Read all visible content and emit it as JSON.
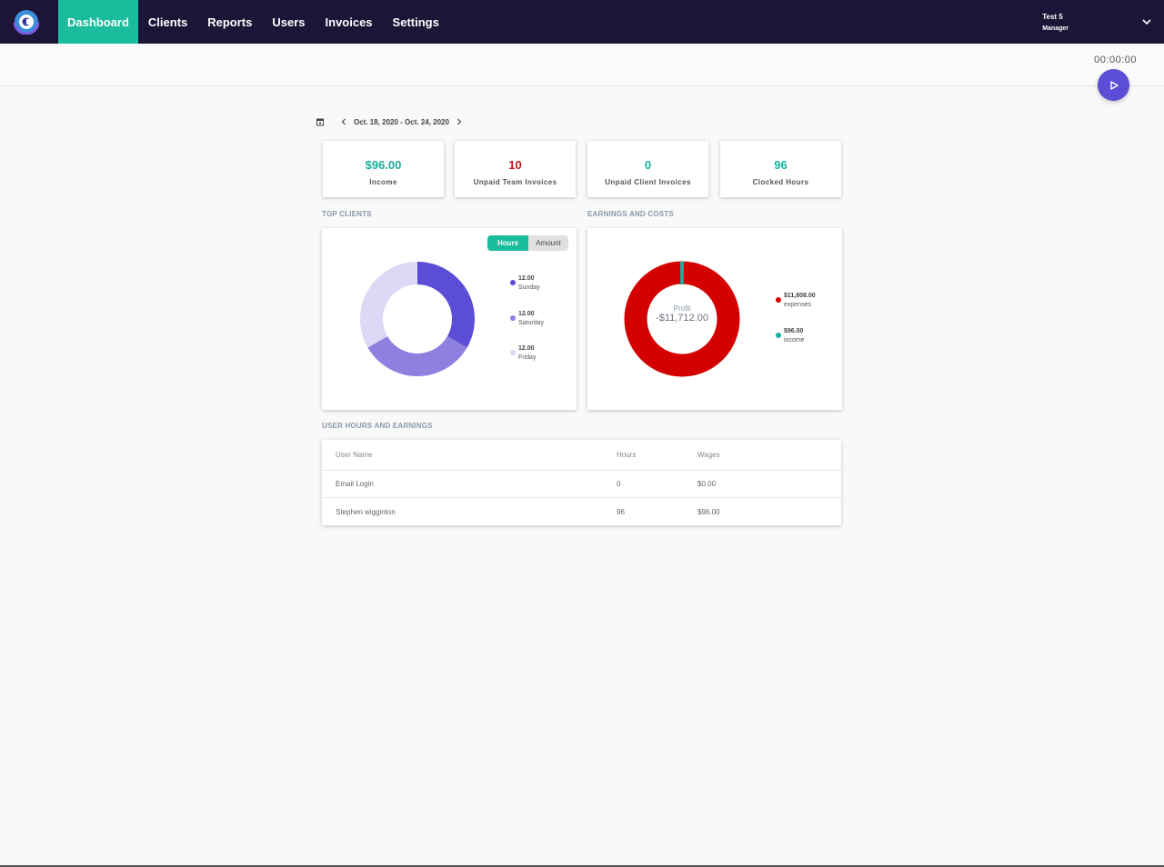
{
  "nav": {
    "items": [
      {
        "label": "Dashboard",
        "active": true
      },
      {
        "label": "Clients"
      },
      {
        "label": "Reports"
      },
      {
        "label": "Users"
      },
      {
        "label": "Invoices"
      },
      {
        "label": "Settings"
      }
    ],
    "user": {
      "name": "Test 5",
      "role": "Manager"
    }
  },
  "timer": {
    "value": "00:00:00"
  },
  "date_range": {
    "label": "Oct. 18, 2020 - Oct. 24, 2020"
  },
  "stats": [
    {
      "value": "$96.00",
      "label": "Income",
      "color": "#1aae9f"
    },
    {
      "value": "10",
      "label": "Unpaid Team Invoices",
      "color": "#c4161c"
    },
    {
      "value": "0",
      "label": "Unpaid Client Invoices",
      "color": "#1aae9f"
    },
    {
      "value": "96",
      "label": "Clocked Hours",
      "color": "#1aae9f"
    }
  ],
  "top_clients": {
    "title": "TOP CLIENTS",
    "toggle": {
      "hours": "Hours",
      "amount": "Amount",
      "selected": "Hours"
    },
    "legend": [
      {
        "value": "12.00",
        "name": "Sunday",
        "color": "#5b4dd6"
      },
      {
        "value": "12.00",
        "name": "Saturday",
        "color": "#8f80e0"
      },
      {
        "value": "12.00",
        "name": "Friday",
        "color": "#dcd8f5"
      }
    ]
  },
  "earnings": {
    "title": "EARNINGS AND COSTS",
    "profit_label": "Profit",
    "profit_value": "-$11,712.00",
    "legend": [
      {
        "value": "$11,808.00",
        "name": "expenses",
        "color": "#d40000"
      },
      {
        "value": "$96.00",
        "name": "income",
        "color": "#1aae9f"
      }
    ]
  },
  "user_table": {
    "title": "USER HOURS AND EARNINGS",
    "headers": [
      "User Name",
      "Hours",
      "Wages"
    ],
    "rows": [
      [
        "Email Login",
        "0",
        "$0.00"
      ],
      [
        "Stephen wigginton",
        "96",
        "$96.00"
      ]
    ]
  },
  "colors": {
    "nav_bg": "#1c1538",
    "accent": "#1abc9c",
    "play": "#5b4dd6"
  }
}
